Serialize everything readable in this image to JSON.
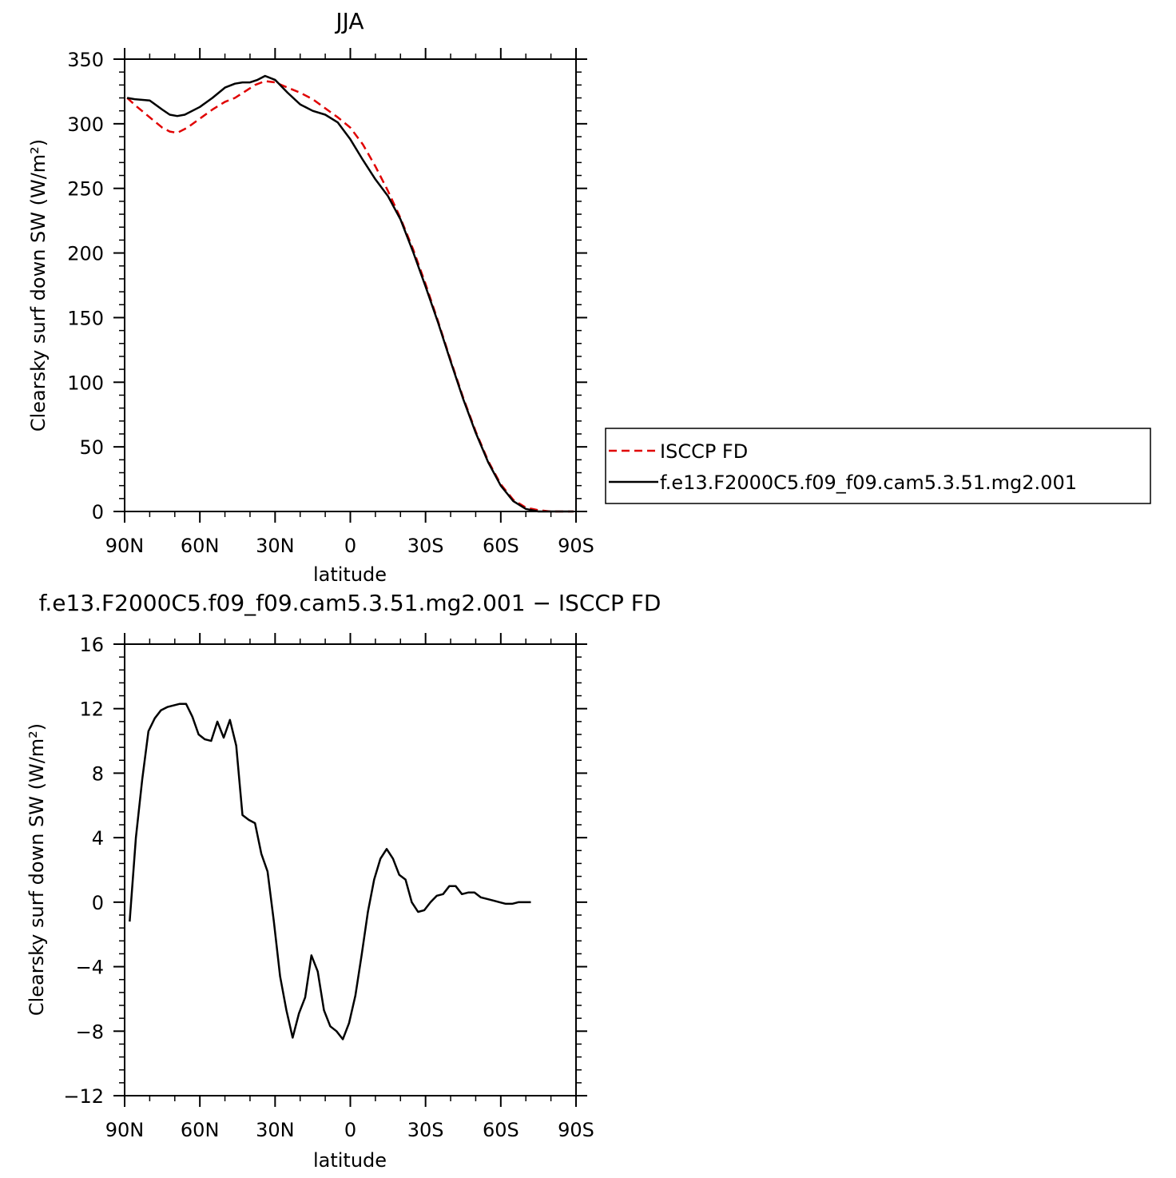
{
  "chart_data": [
    {
      "type": "line",
      "title": "JJA",
      "xlabel": "latitude",
      "ylabel": "Clearsky surf down SW (W/m²)",
      "xlim": [
        -90,
        90
      ],
      "ylim": [
        0,
        350
      ],
      "x_ticks": [
        {
          "value": -90,
          "label": "90N"
        },
        {
          "value": -60,
          "label": "60N"
        },
        {
          "value": -30,
          "label": "30N"
        },
        {
          "value": 0,
          "label": "0"
        },
        {
          "value": 30,
          "label": "30S"
        },
        {
          "value": 60,
          "label": "60S"
        },
        {
          "value": 90,
          "label": "90S"
        }
      ],
      "y_ticks": [
        0,
        50,
        100,
        150,
        200,
        250,
        300,
        350
      ],
      "legend_position": "right",
      "series": [
        {
          "name": "ISCCP FD",
          "color": "#e00000",
          "dash": "dashed",
          "points": [
            [
              -89,
              320
            ],
            [
              -85,
              313
            ],
            [
              -80,
              305
            ],
            [
              -75,
              297
            ],
            [
              -72,
              294
            ],
            [
              -69,
              293
            ],
            [
              -65,
              297
            ],
            [
              -60,
              304
            ],
            [
              -55,
              311
            ],
            [
              -50,
              317
            ],
            [
              -46,
              320
            ],
            [
              -42,
              325
            ],
            [
              -38,
              330
            ],
            [
              -34,
              333
            ],
            [
              -30,
              332
            ],
            [
              -25,
              328
            ],
            [
              -20,
              324
            ],
            [
              -15,
              319
            ],
            [
              -10,
              312
            ],
            [
              -5,
              305
            ],
            [
              0,
              297
            ],
            [
              5,
              284
            ],
            [
              10,
              267
            ],
            [
              15,
              248
            ],
            [
              20,
              227
            ],
            [
              25,
              203
            ],
            [
              30,
              176
            ],
            [
              35,
              147
            ],
            [
              40,
              117
            ],
            [
              45,
              88
            ],
            [
              50,
              62
            ],
            [
              55,
              39
            ],
            [
              60,
              21
            ],
            [
              65,
              9
            ],
            [
              70,
              3
            ],
            [
              75,
              1
            ],
            [
              80,
              0
            ],
            [
              85,
              0
            ],
            [
              89,
              0
            ]
          ]
        },
        {
          "name": "f.e13.F2000C5.f09_f09.cam5.3.51.mg2.001",
          "color": "#000000",
          "dash": "solid",
          "points": [
            [
              -89,
              320
            ],
            [
              -86,
              319
            ],
            [
              -80,
              318
            ],
            [
              -75,
              311
            ],
            [
              -72,
              307
            ],
            [
              -69,
              306
            ],
            [
              -66,
              307
            ],
            [
              -60,
              313
            ],
            [
              -55,
              320
            ],
            [
              -50,
              328
            ],
            [
              -46,
              331
            ],
            [
              -43,
              332
            ],
            [
              -40,
              332
            ],
            [
              -37,
              334
            ],
            [
              -34,
              337
            ],
            [
              -30,
              334
            ],
            [
              -25,
              324
            ],
            [
              -20,
              315
            ],
            [
              -15,
              310
            ],
            [
              -10,
              307
            ],
            [
              -5,
              301
            ],
            [
              0,
              288
            ],
            [
              5,
              272
            ],
            [
              10,
              257
            ],
            [
              15,
              244
            ],
            [
              20,
              226
            ],
            [
              25,
              201
            ],
            [
              30,
              174
            ],
            [
              35,
              146
            ],
            [
              40,
              116
            ],
            [
              45,
              87
            ],
            [
              50,
              61
            ],
            [
              55,
              38
            ],
            [
              60,
              20
            ],
            [
              65,
              8
            ],
            [
              70,
              2
            ],
            [
              75,
              0
            ],
            [
              80,
              0
            ],
            [
              85,
              0
            ],
            [
              89,
              0
            ]
          ]
        }
      ]
    },
    {
      "type": "line",
      "title": "f.e13.F2000C5.f09_f09.cam5.3.51.mg2.001 − ISCCP FD",
      "xlabel": "latitude",
      "ylabel": "Clearsky surf down SW (W/m²)",
      "xlim": [
        -90,
        90
      ],
      "ylim": [
        -12,
        16
      ],
      "x_ticks": [
        {
          "value": -90,
          "label": "90N"
        },
        {
          "value": -60,
          "label": "60N"
        },
        {
          "value": -30,
          "label": "30N"
        },
        {
          "value": 0,
          "label": "0"
        },
        {
          "value": 30,
          "label": "30S"
        },
        {
          "value": 60,
          "label": "60S"
        },
        {
          "value": 90,
          "label": "90S"
        }
      ],
      "y_ticks": [
        {
          "value": -12,
          "label": "−12"
        },
        {
          "value": -8,
          "label": "−8"
        },
        {
          "value": -4,
          "label": "−4"
        },
        {
          "value": 0,
          "label": "0"
        },
        {
          "value": 4,
          "label": "4"
        },
        {
          "value": 8,
          "label": "8"
        },
        {
          "value": 12,
          "label": "12"
        },
        {
          "value": 16,
          "label": "16"
        }
      ],
      "series": [
        {
          "color": "#000000",
          "dash": "solid",
          "points": [
            [
              -88,
              -1.2
            ],
            [
              -85.5,
              4.0
            ],
            [
              -83,
              7.6
            ],
            [
              -80.5,
              10.6
            ],
            [
              -78,
              11.4
            ],
            [
              -75.5,
              11.9
            ],
            [
              -73,
              12.1
            ],
            [
              -70.5,
              12.2
            ],
            [
              -68,
              12.3
            ],
            [
              -65.5,
              12.3
            ],
            [
              -63,
              11.5
            ],
            [
              -60.5,
              10.4
            ],
            [
              -58,
              10.1
            ],
            [
              -55.5,
              10.0
            ],
            [
              -53,
              11.2
            ],
            [
              -50.5,
              10.2
            ],
            [
              -48,
              11.3
            ],
            [
              -45.5,
              9.7
            ],
            [
              -43,
              5.4
            ],
            [
              -40.5,
              5.1
            ],
            [
              -38,
              4.9
            ],
            [
              -35.5,
              3.0
            ],
            [
              -33,
              1.9
            ],
            [
              -30.5,
              -1.2
            ],
            [
              -28,
              -4.6
            ],
            [
              -25.5,
              -6.7
            ],
            [
              -23,
              -8.4
            ],
            [
              -20.5,
              -6.9
            ],
            [
              -18,
              -5.9
            ],
            [
              -15.5,
              -3.3
            ],
            [
              -13,
              -4.3
            ],
            [
              -10.5,
              -6.7
            ],
            [
              -8,
              -7.7
            ],
            [
              -5.5,
              -8.0
            ],
            [
              -3,
              -8.5
            ],
            [
              -0.5,
              -7.5
            ],
            [
              2,
              -5.8
            ],
            [
              4.5,
              -3.3
            ],
            [
              7,
              -0.6
            ],
            [
              9.5,
              1.4
            ],
            [
              12,
              2.7
            ],
            [
              14.5,
              3.3
            ],
            [
              17,
              2.7
            ],
            [
              19.5,
              1.7
            ],
            [
              22,
              1.4
            ],
            [
              24.5,
              0.0
            ],
            [
              27,
              -0.6
            ],
            [
              29.5,
              -0.5
            ],
            [
              32,
              0.0
            ],
            [
              34.5,
              0.4
            ],
            [
              37,
              0.5
            ],
            [
              39.5,
              1.0
            ],
            [
              42,
              1.0
            ],
            [
              44.5,
              0.5
            ],
            [
              47,
              0.6
            ],
            [
              49.5,
              0.6
            ],
            [
              52,
              0.3
            ],
            [
              54.5,
              0.2
            ],
            [
              57,
              0.1
            ],
            [
              59.5,
              0.0
            ],
            [
              62,
              -0.1
            ],
            [
              64.5,
              -0.1
            ],
            [
              67,
              0.0
            ],
            [
              69.5,
              0.0
            ],
            [
              72,
              0.0
            ]
          ]
        }
      ]
    }
  ]
}
